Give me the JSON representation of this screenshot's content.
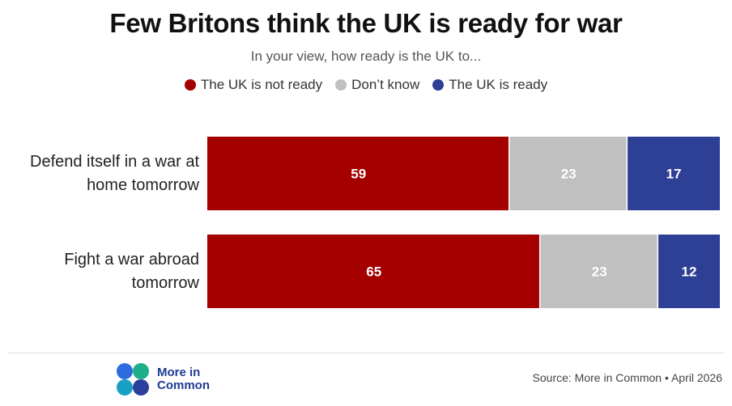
{
  "chart_data": {
    "type": "bar",
    "orientation": "horizontal",
    "stacked": true,
    "title": "Few Britons think the UK is ready for war",
    "subtitle": "In your view, how ready is the UK to...",
    "categories": [
      "Defend itself in a war at home tomorrow",
      "Fight a war abroad tomorrow"
    ],
    "series": [
      {
        "name": "The UK is not ready",
        "color": "#a50000",
        "values": [
          59,
          65
        ]
      },
      {
        "name": "Don’t know",
        "color": "#c0c0c0",
        "values": [
          23,
          23
        ]
      },
      {
        "name": "The UK is ready",
        "color": "#2e3f96",
        "values": [
          17,
          12
        ]
      }
    ],
    "xlim": [
      0,
      100
    ],
    "legend_position": "top",
    "grid": false
  },
  "footer": {
    "logo_text": "More in Common",
    "source": "Source: More in Common • April 2026"
  }
}
